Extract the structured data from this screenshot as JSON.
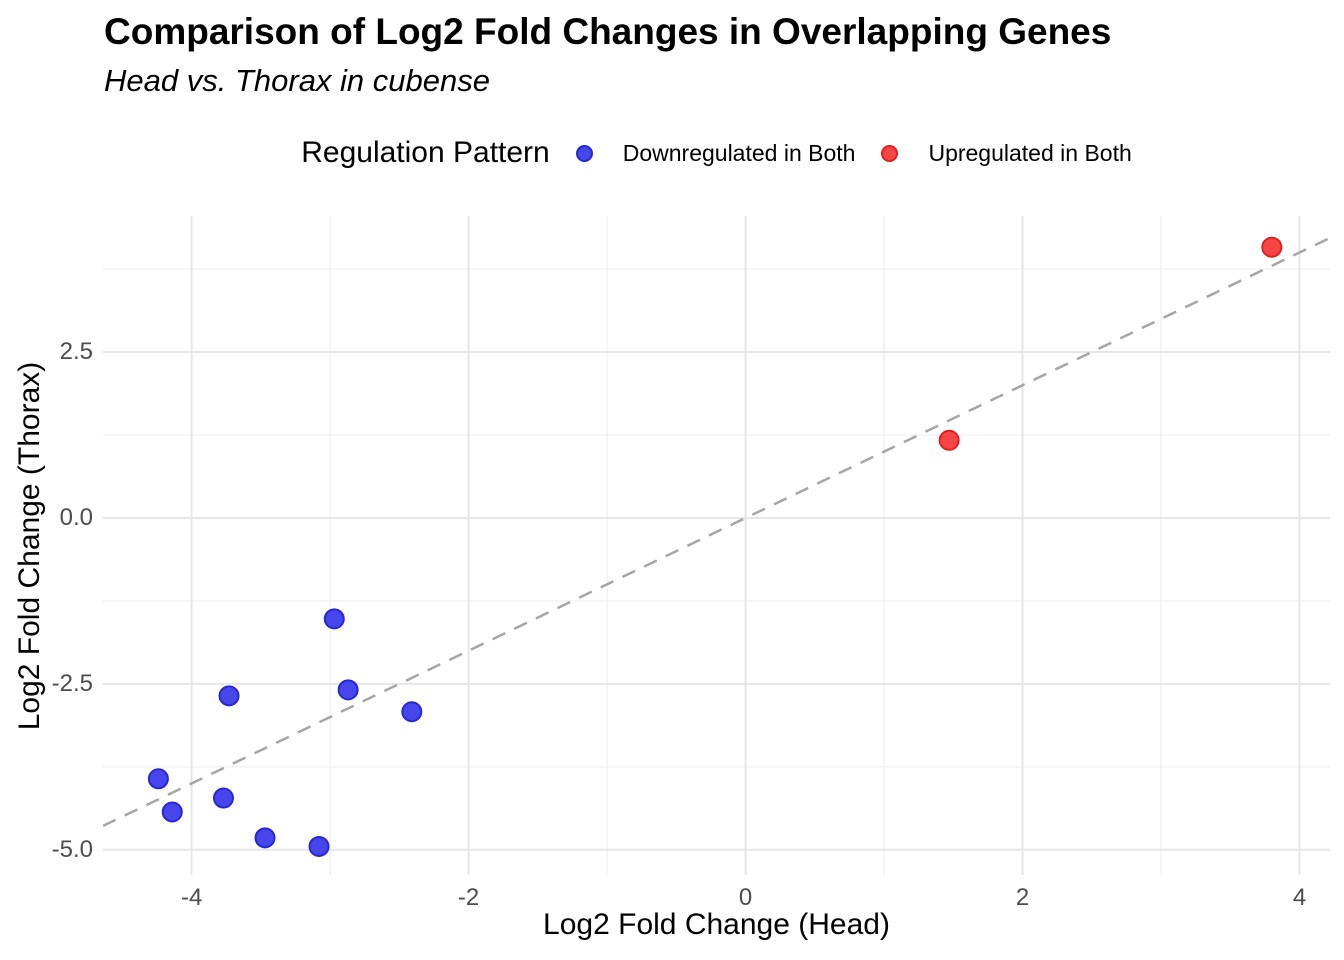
{
  "header": {
    "title": "Comparison of Log2 Fold Changes in Overlapping Genes",
    "subtitle": "Head vs. Thorax in cubense"
  },
  "legend": {
    "title": "Regulation Pattern",
    "items": [
      {
        "label": "Downregulated in Both",
        "fill": "#4646EC",
        "stroke": "#2828D0"
      },
      {
        "label": "Upregulated in Both",
        "fill": "#F64545",
        "stroke": "#E02020"
      }
    ]
  },
  "chart_data": {
    "type": "scatter",
    "title": "Comparison of Log2 Fold Changes in Overlapping Genes",
    "subtitle": "Head vs. Thorax in cubense",
    "xlabel": "Log2 Fold Change (Head)",
    "ylabel": "Log2 Fold Change (Thorax)",
    "xlim": [
      -4.64,
      4.22
    ],
    "ylim": [
      -5.38,
      4.55
    ],
    "xticks": {
      "values": [
        -4,
        -2,
        0,
        2,
        4
      ],
      "labels": [
        "-4",
        "-2",
        "0",
        "2",
        "4"
      ]
    },
    "yticks": {
      "values": [
        2.5,
        0,
        -2.5,
        -5
      ],
      "labels": [
        "2.5",
        "0.0",
        "-2.5",
        "-5.0"
      ]
    },
    "x_minor": [
      -3,
      -1,
      1,
      3
    ],
    "y_minor": [
      3.75,
      1.25,
      -1.25,
      -3.75
    ],
    "grid": true,
    "legend_position": "top",
    "grid_major_color": "#E6E6E6",
    "grid_minor_color": "#F0F0F0",
    "reference_line": {
      "kind": "identity",
      "style": "dashed",
      "color": "#A6A6A6"
    },
    "series": [
      {
        "name": "Downregulated in Both",
        "color": "#4646EC",
        "stroke": "#2828D0",
        "points": [
          [
            -2.97,
            -1.52
          ],
          [
            -2.87,
            -2.59
          ],
          [
            -3.73,
            -2.68
          ],
          [
            -2.41,
            -2.92
          ],
          [
            -4.24,
            -3.93
          ],
          [
            -3.77,
            -4.22
          ],
          [
            -4.14,
            -4.43
          ],
          [
            -3.47,
            -4.82
          ],
          [
            -3.08,
            -4.95
          ]
        ]
      },
      {
        "name": "Upregulated in Both",
        "color": "#F64545",
        "stroke": "#E02020",
        "points": [
          [
            1.47,
            1.17
          ],
          [
            3.8,
            4.08
          ]
        ]
      }
    ]
  }
}
